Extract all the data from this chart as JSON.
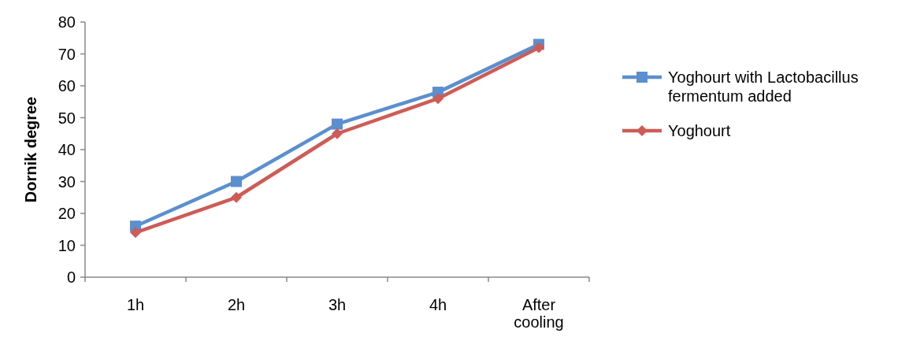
{
  "chart_data": {
    "type": "line",
    "ylabel": "Dornik degree",
    "categories": [
      "1h",
      "2h",
      "3h",
      "4h",
      "After cooling"
    ],
    "series": [
      {
        "name": "Yoghourt with Lactobacillus fermentum added",
        "color": "#5b8fcf",
        "marker": "square",
        "values": [
          16,
          30,
          48,
          58,
          73
        ]
      },
      {
        "name": "Yoghourt",
        "color": "#cd5c56",
        "marker": "diamond",
        "values": [
          14,
          25,
          45,
          56,
          72
        ]
      }
    ],
    "ylim": [
      0,
      80
    ],
    "yticks": [
      0,
      10,
      20,
      30,
      40,
      50,
      60,
      70,
      80
    ],
    "legend": "right",
    "grid": false
  }
}
